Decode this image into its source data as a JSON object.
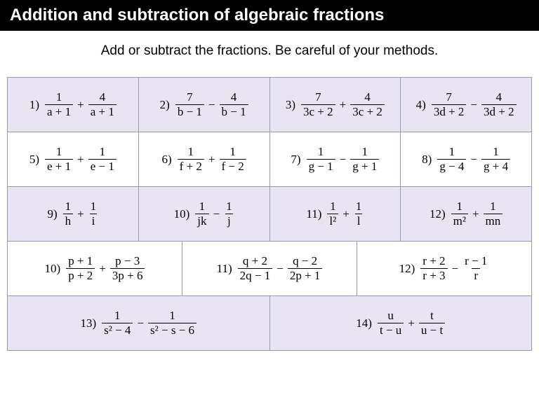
{
  "colors": {
    "header_bg": "#000000",
    "header_fg": "#ffffff",
    "tint_bg": "#e9e4f2",
    "plain_bg": "#ffffff",
    "border": "#9999aa"
  },
  "typography": {
    "header_fontsize": 24,
    "instruction_fontsize": 19,
    "cell_fontsize": 18,
    "math_font": "Cambria Math / Times"
  },
  "header": {
    "title": "Addition and subtraction of algebraic fractions"
  },
  "instructions": "Add or subtract the fractions. Be careful of your methods.",
  "rows": [
    {
      "cols": 4,
      "bg": "tint",
      "cells": [
        {
          "qn": "1)",
          "f1": {
            "num": "1",
            "den": "a + 1"
          },
          "op": "+",
          "f2": {
            "num": "4",
            "den": "a + 1"
          }
        },
        {
          "qn": "2)",
          "f1": {
            "num": "7",
            "den": "b − 1"
          },
          "op": "−",
          "f2": {
            "num": "4",
            "den": "b − 1"
          }
        },
        {
          "qn": "3)",
          "f1": {
            "num": "7",
            "den": "3c + 2"
          },
          "op": "+",
          "f2": {
            "num": "4",
            "den": "3c + 2"
          }
        },
        {
          "qn": "4)",
          "f1": {
            "num": "7",
            "den": "3d + 2"
          },
          "op": "−",
          "f2": {
            "num": "4",
            "den": "3d + 2"
          }
        }
      ]
    },
    {
      "cols": 4,
      "bg": "plain",
      "cells": [
        {
          "qn": "5)",
          "f1": {
            "num": "1",
            "den": "e + 1"
          },
          "op": "+",
          "f2": {
            "num": "1",
            "den": "e − 1"
          }
        },
        {
          "qn": "6)",
          "f1": {
            "num": "1",
            "den": "f + 2"
          },
          "op": "+",
          "f2": {
            "num": "1",
            "den": "f − 2"
          }
        },
        {
          "qn": "7)",
          "f1": {
            "num": "1",
            "den": "g − 1"
          },
          "op": "−",
          "f2": {
            "num": "1",
            "den": "g + 1"
          }
        },
        {
          "qn": "8)",
          "f1": {
            "num": "1",
            "den": "g − 4"
          },
          "op": "−",
          "f2": {
            "num": "1",
            "den": "g + 4"
          }
        }
      ]
    },
    {
      "cols": 4,
      "bg": "tint",
      "cells": [
        {
          "qn": "9)",
          "f1": {
            "num": "1",
            "den": "h"
          },
          "op": "+",
          "f2": {
            "num": "1",
            "den": "i"
          }
        },
        {
          "qn": "10)",
          "f1": {
            "num": "1",
            "den": "jk"
          },
          "op": "−",
          "f2": {
            "num": "1",
            "den": "j"
          }
        },
        {
          "qn": "11)",
          "f1": {
            "num": "1",
            "den": "l²"
          },
          "op": "+",
          "f2": {
            "num": "1",
            "den": "l"
          }
        },
        {
          "qn": "12)",
          "f1": {
            "num": "1",
            "den": "m²"
          },
          "op": "+",
          "f2": {
            "num": "1",
            "den": "mn"
          }
        }
      ]
    },
    {
      "cols": 3,
      "bg": "plain",
      "cells": [
        {
          "qn": "10)",
          "f1": {
            "num": "p + 1",
            "den": "p + 2"
          },
          "op": "+",
          "f2": {
            "num": "p − 3",
            "den": "3p + 6"
          }
        },
        {
          "qn": "11)",
          "f1": {
            "num": "q + 2",
            "den": "2q − 1"
          },
          "op": "−",
          "f2": {
            "num": "q − 2",
            "den": "2p + 1"
          }
        },
        {
          "qn": "12)",
          "f1": {
            "num": "r + 2",
            "den": "r + 3"
          },
          "op": "−",
          "f2": {
            "num": "r − 1",
            "den": "r"
          }
        }
      ]
    },
    {
      "cols": 2,
      "bg": "tint",
      "cells": [
        {
          "qn": "13)",
          "f1": {
            "num": "1",
            "den": "s² − 4"
          },
          "op": "−",
          "f2": {
            "num": "1",
            "den": "s² − s − 6"
          }
        },
        {
          "qn": "14)",
          "f1": {
            "num": "u",
            "den": "t − u"
          },
          "op": "+",
          "f2": {
            "num": "t",
            "den": "u − t"
          }
        }
      ]
    }
  ]
}
